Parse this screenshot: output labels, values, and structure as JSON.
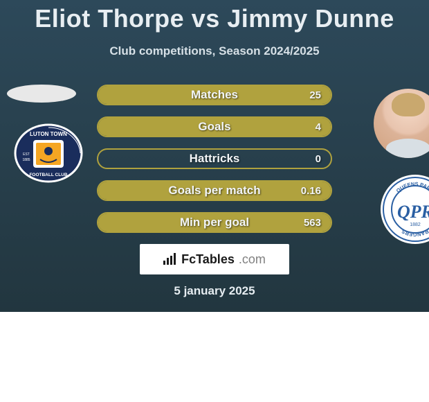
{
  "title_line": "Eliot Thorpe vs Jimmy Dunne",
  "subtitle": "Club competitions, Season 2024/2025",
  "date": "5 january 2025",
  "brand": {
    "name_main": "FcTables",
    "name_suffix": ".com"
  },
  "colors": {
    "bg_top": "#2d495a",
    "bg_bottom": "#22363f",
    "bar_border": "#b0a23e",
    "bar_fill": "#b0a23e",
    "text_light": "#e8eef2"
  },
  "left_club": {
    "name": "Luton Town Football Club",
    "crest_bg": "#1a2d5c",
    "crest_text": "LUTON TOWN",
    "crest_sub": "FOOTBALL CLUB"
  },
  "right_club": {
    "name": "Queens Park Rangers",
    "crest_color": "#2a5fa3",
    "crest_text": "QUEENS PARK RANGERS",
    "crest_year": "1882"
  },
  "stats": [
    {
      "label": "Matches",
      "left_val": "",
      "right_val": "25",
      "left_pct": 0,
      "right_pct": 100
    },
    {
      "label": "Goals",
      "left_val": "",
      "right_val": "4",
      "left_pct": 0,
      "right_pct": 100
    },
    {
      "label": "Hattricks",
      "left_val": "",
      "right_val": "0",
      "left_pct": 0,
      "right_pct": 0
    },
    {
      "label": "Goals per match",
      "left_val": "",
      "right_val": "0.16",
      "left_pct": 0,
      "right_pct": 100
    },
    {
      "label": "Min per goal",
      "left_val": "",
      "right_val": "563",
      "left_pct": 0,
      "right_pct": 100
    }
  ]
}
